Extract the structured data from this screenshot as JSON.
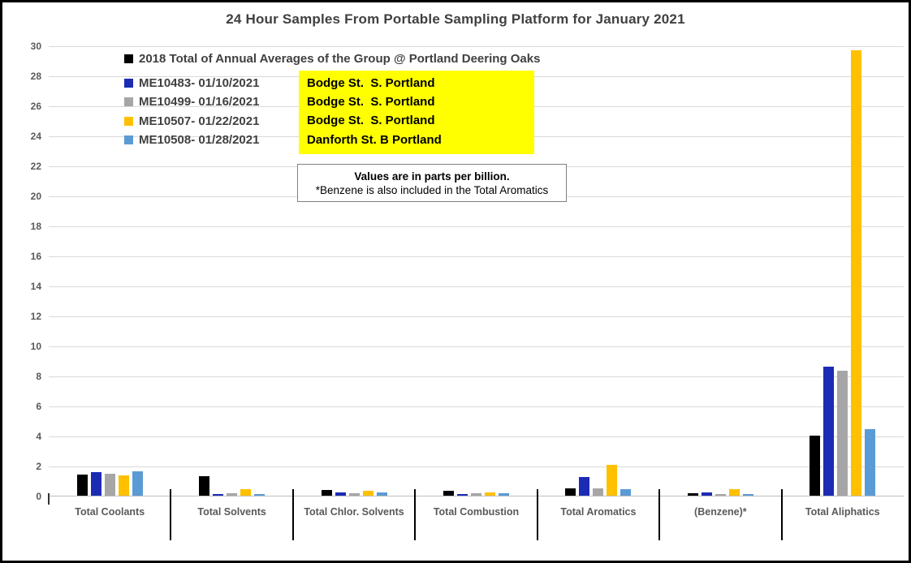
{
  "title": "24 Hour Samples From Portable Sampling Platform for January 2021",
  "chart_data": {
    "type": "bar",
    "categories": [
      "Total Coolants",
      "Total Solvents",
      "Total Chlor. Solvents",
      "Total Combustion",
      "Total Aromatics",
      "(Benzene)*",
      "Total Aliphatics"
    ],
    "series": [
      {
        "name": "2018 Total of Annual Averages of the Group @ Portland Deering Oaks",
        "color": "#000000",
        "values": [
          1.4,
          1.3,
          0.4,
          0.3,
          0.5,
          0.15,
          4.0
        ]
      },
      {
        "name": "ME10483- 01/10/2021",
        "color": "#1B2BB3",
        "values": [
          1.55,
          0.1,
          0.2,
          0.1,
          1.25,
          0.2,
          8.6
        ]
      },
      {
        "name": "ME10499- 01/16/2021",
        "color": "#A6A6A6",
        "values": [
          1.45,
          0.15,
          0.15,
          0.15,
          0.5,
          0.1,
          8.35
        ]
      },
      {
        "name": "ME10507- 01/22/2021",
        "color": "#FFC000",
        "values": [
          1.35,
          0.45,
          0.3,
          0.2,
          2.05,
          0.45,
          29.65
        ]
      },
      {
        "name": "ME10508- 01/28/2021",
        "color": "#5B9BD5",
        "values": [
          1.6,
          0.1,
          0.2,
          0.15,
          0.45,
          0.1,
          4.45
        ]
      }
    ],
    "ylim": [
      0,
      30
    ],
    "ytick_step": 2,
    "grid": true,
    "legend_position": "top-left-inside",
    "gridline_color": "#D9D9D9",
    "axis_line_color": "#BFBFBF"
  },
  "annotations": {
    "locations": [
      "Bodge St.  S. Portland",
      "Bodge St.  S. Portland",
      "Bodge St.  S. Portland",
      "Danforth St. B Portland"
    ],
    "highlight_color": "#FFFF00",
    "note_line1": "Values are in parts per billion.",
    "note_line2": "*Benzene is also included in the Total Aromatics"
  }
}
